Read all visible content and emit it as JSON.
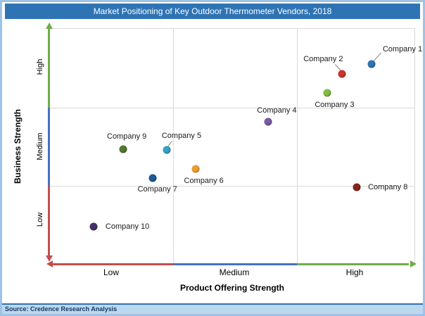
{
  "title": "Market Positioning of Key Outdoor Thermometer Vendors, 2018",
  "source": "Source: Credence Research Analysis",
  "colors": {
    "title_bar_bg": "#2E74B5",
    "page_border": "#9DC3E6",
    "source_bar_bg": "#BDD7EE",
    "axis_red": "#C0504D",
    "axis_blue": "#4472C4",
    "axis_green": "#70AD47",
    "grid": "#D9D9D9"
  },
  "axes": {
    "y_title": "Business Strength",
    "x_title": "Product Offering Strength",
    "y_ticks": [
      "High",
      "Medium",
      "Low"
    ],
    "x_ticks": [
      "Low",
      "Medium",
      "High"
    ]
  },
  "chart_data": {
    "type": "scatter",
    "title": "Market Positioning of Key Outdoor Thermometer Vendors, 2018",
    "xlabel": "Product Offering Strength",
    "ylabel": "Business Strength",
    "x_axis_bands": [
      "Low",
      "Medium",
      "High"
    ],
    "y_axis_bands": [
      "Low",
      "Medium",
      "High"
    ],
    "grid": true,
    "note": "x,y and label positions are percents of the plot area; y measured from top (top = High business strength)",
    "points": [
      {
        "name": "Company 1",
        "color": "#2E75B6",
        "x": 88.3,
        "y": 14.9,
        "label_x": 91.3,
        "label_y": 8.7,
        "product_offering": "High",
        "business_strength": "High",
        "connector": {
          "x1": 90.9,
          "y1": 10.2,
          "x2": 88.9,
          "y2": 13.5
        }
      },
      {
        "name": "Company 2",
        "color": "#CE352C",
        "x": 80.2,
        "y": 19.1,
        "label_x": 69.6,
        "label_y": 12.9,
        "product_offering": "High",
        "business_strength": "High",
        "connector": {
          "x1": 78.3,
          "y1": 15.2,
          "x2": 79.9,
          "y2": 17.8
        }
      },
      {
        "name": "Company 3",
        "color": "#84BD3F",
        "x": 76.2,
        "y": 27.2,
        "label_x": 72.7,
        "label_y": 32.3,
        "product_offering": "High",
        "business_strength": "High"
      },
      {
        "name": "Company 4",
        "color": "#7B5BA5",
        "x": 60.0,
        "y": 39.4,
        "label_x": 56.9,
        "label_y": 34.6,
        "product_offering": "Medium",
        "business_strength": "Medium"
      },
      {
        "name": "Company 5",
        "color": "#35A3C8",
        "x": 32.1,
        "y": 51.6,
        "label_x": 30.8,
        "label_y": 45.4,
        "product_offering": "Low",
        "business_strength": "Medium",
        "connector": {
          "x1": 33.6,
          "y1": 47.8,
          "x2": 32.4,
          "y2": 50.2
        }
      },
      {
        "name": "Company 6",
        "color": "#F0A030",
        "x": 40.0,
        "y": 59.7,
        "label_x": 36.9,
        "label_y": 64.8,
        "product_offering": "Medium",
        "business_strength": "Medium"
      },
      {
        "name": "Company 7",
        "color": "#1F5B99",
        "x": 28.3,
        "y": 63.6,
        "label_x": 24.2,
        "label_y": 68.4,
        "product_offering": "Low",
        "business_strength": "Medium"
      },
      {
        "name": "Company 8",
        "color": "#8A251B",
        "x": 84.2,
        "y": 67.5,
        "label_x": 87.3,
        "label_y": 67.5,
        "product_offering": "High",
        "business_strength": "Low"
      },
      {
        "name": "Company 9",
        "color": "#537B2F",
        "x": 20.2,
        "y": 51.3,
        "label_x": 15.8,
        "label_y": 45.7,
        "product_offering": "Low",
        "business_strength": "Medium"
      },
      {
        "name": "Company 10",
        "color": "#49306B",
        "x": 12.1,
        "y": 84.2,
        "label_x": 15.4,
        "label_y": 84.2,
        "product_offering": "Low",
        "business_strength": "Low"
      }
    ]
  }
}
